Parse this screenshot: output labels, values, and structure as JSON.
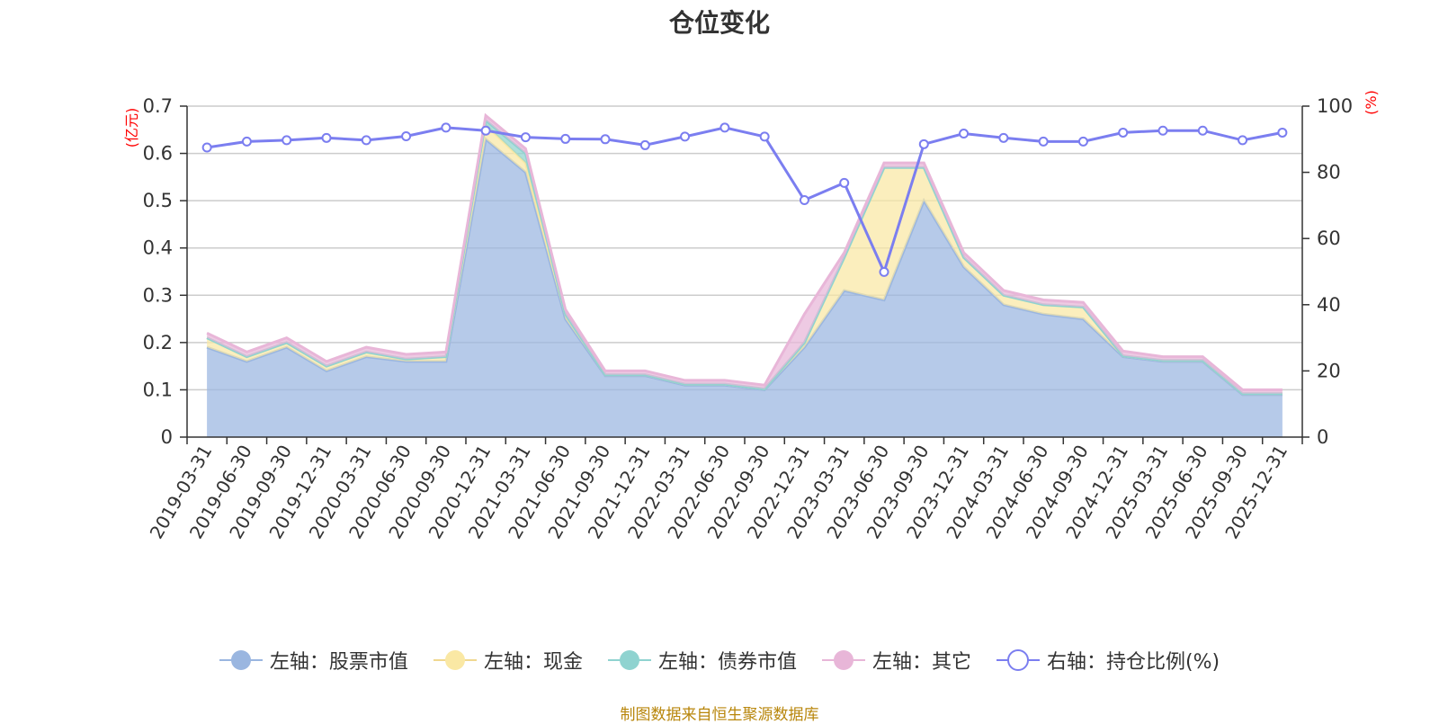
{
  "chart_data": {
    "type": "area",
    "title": "仓位变化",
    "categories": [
      "2019-03-31",
      "2019-06-30",
      "2019-09-30",
      "2019-12-31",
      "2020-03-31",
      "2020-06-30",
      "2020-09-30",
      "2020-12-31",
      "2021-03-31",
      "2021-06-30",
      "2021-09-30",
      "2021-12-31",
      "2022-03-31",
      "2022-06-30",
      "2022-09-30",
      "2022-12-31",
      "2023-03-31",
      "2023-06-30",
      "2023-09-30",
      "2023-12-31",
      "2024-03-31",
      "2024-06-30",
      "2024-09-30",
      "2024-12-31",
      "2025-03-31",
      "2025-06-30",
      "2025-09-30",
      "2025-12-31"
    ],
    "y_left": {
      "unit": "(亿元)",
      "min": 0,
      "max": 0.7,
      "ticks": [
        "0",
        "0.1",
        "0.2",
        "0.3",
        "0.4",
        "0.5",
        "0.6",
        "0.7"
      ]
    },
    "y_right": {
      "unit": "(%)",
      "min": 0,
      "max": 100,
      "ticks": [
        "0",
        "20",
        "40",
        "60",
        "80",
        "100"
      ]
    },
    "series": [
      {
        "name": "左轴：股票市值",
        "axis": "left",
        "stack": true,
        "color": "#9ab6e0",
        "values": [
          0.19,
          0.16,
          0.19,
          0.14,
          0.17,
          0.16,
          0.16,
          0.63,
          0.56,
          0.25,
          0.13,
          0.13,
          0.11,
          0.11,
          0.1,
          0.19,
          0.31,
          0.29,
          0.5,
          0.36,
          0.28,
          0.26,
          0.25,
          0.17,
          0.16,
          0.16,
          0.09,
          0.09
        ]
      },
      {
        "name": "左轴：现金",
        "axis": "left",
        "stack": true,
        "color": "#fae8a4",
        "values": [
          0.02,
          0.01,
          0.01,
          0.01,
          0.01,
          0.005,
          0.01,
          0.03,
          0.02,
          0.01,
          0.002,
          0.002,
          0.002,
          0.002,
          0.002,
          0.01,
          0.07,
          0.28,
          0.07,
          0.02,
          0.02,
          0.02,
          0.025,
          0.002,
          0.002,
          0.002,
          0.002,
          0.002
        ]
      },
      {
        "name": "左轴：债券市值",
        "axis": "left",
        "stack": true,
        "color": "#8fd3d0",
        "values": [
          0,
          0,
          0,
          0,
          0,
          0,
          0,
          0.01,
          0.02,
          0,
          0,
          0,
          0,
          0,
          0,
          0,
          0,
          0,
          0,
          0,
          0,
          0,
          0,
          0,
          0,
          0,
          0,
          0
        ]
      },
      {
        "name": "左轴：其它",
        "axis": "left",
        "stack": true,
        "color": "#e8b6d8",
        "values": [
          0.01,
          0.01,
          0.01,
          0.01,
          0.01,
          0.01,
          0.01,
          0.01,
          0.01,
          0.01,
          0.008,
          0.008,
          0.008,
          0.008,
          0.008,
          0.06,
          0.01,
          0.01,
          0.01,
          0.01,
          0.01,
          0.01,
          0.01,
          0.01,
          0.008,
          0.008,
          0.008,
          0.008
        ]
      },
      {
        "name": "右轴：持仓比例(%)",
        "axis": "right",
        "stack": false,
        "color": "#7b7ef0",
        "values": [
          87.5,
          89.3,
          89.7,
          90.4,
          89.7,
          90.9,
          93.5,
          92.6,
          90.6,
          90.1,
          90.0,
          88.2,
          90.8,
          93.5,
          90.8,
          71.6,
          76.8,
          49.9,
          88.5,
          91.7,
          90.4,
          89.3,
          89.3,
          92.0,
          92.6,
          92.6,
          89.7,
          92.0
        ]
      }
    ],
    "grid": true,
    "legend_position": "bottom"
  },
  "legend": {
    "items": [
      {
        "label": "左轴：股票市值",
        "style": "dot-line",
        "color": "#9ab6e0",
        "line_color": "#9ab6e0"
      },
      {
        "label": "左轴：现金",
        "style": "dot-line",
        "color": "#fae8a4",
        "line_color": "#f0d890"
      },
      {
        "label": "左轴：债券市值",
        "style": "dot-line",
        "color": "#8fd3d0",
        "line_color": "#8fd3d0"
      },
      {
        "label": "左轴：其它",
        "style": "dot-line",
        "color": "#e8b6d8",
        "line_color": "#e8b6d8"
      },
      {
        "label": "右轴：持仓比例(%)",
        "style": "ring-line",
        "color": "#7b7ef0",
        "line_color": "#7b7ef0"
      }
    ]
  },
  "source_note": "制图数据来自恒生聚源数据库"
}
